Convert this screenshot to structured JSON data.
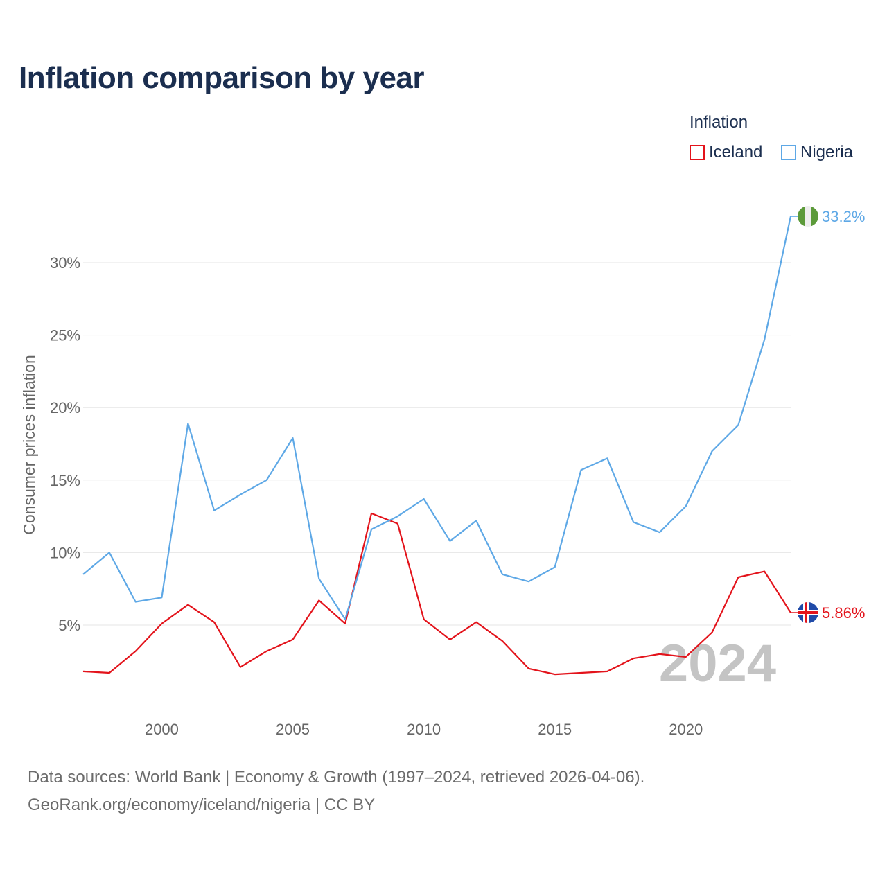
{
  "title": "Inflation comparison by year",
  "legend": {
    "title": "Inflation",
    "items": [
      {
        "name": "Iceland",
        "color": "#e3131b"
      },
      {
        "name": "Nigeria",
        "color": "#5ea8e6"
      }
    ]
  },
  "year_watermark": "2024",
  "source": {
    "line1": "Data sources: World Bank | Economy & Growth (1997–2024, retrieved 2026-04-06).",
    "line2": "GeoRank.org/economy/iceland/nigeria | CC BY"
  },
  "chart_data": {
    "type": "line",
    "title": "Inflation comparison by year",
    "xlabel": "",
    "ylabel": "Consumer prices inflation",
    "x": [
      1997,
      1998,
      1999,
      2000,
      2001,
      2002,
      2003,
      2004,
      2005,
      2006,
      2007,
      2008,
      2009,
      2010,
      2011,
      2012,
      2013,
      2014,
      2015,
      2016,
      2017,
      2018,
      2019,
      2020,
      2021,
      2022,
      2023,
      2024
    ],
    "xlim": [
      1997,
      2024
    ],
    "ylim": [
      0,
      33.2
    ],
    "x_ticks": [
      2000,
      2005,
      2010,
      2015,
      2020
    ],
    "x_tick_labels": [
      "2000",
      "2005",
      "2010",
      "2015",
      "2020"
    ],
    "y_ticks": [
      5,
      10,
      15,
      20,
      25,
      30
    ],
    "y_tick_labels": [
      "5%",
      "10%",
      "15%",
      "20%",
      "25%",
      "30%"
    ],
    "grid": true,
    "legend_position": "top-right",
    "series": [
      {
        "name": "Iceland",
        "color": "#e3131b",
        "values": [
          1.8,
          1.7,
          3.2,
          5.1,
          6.4,
          5.2,
          2.1,
          3.2,
          4.0,
          6.7,
          5.1,
          12.7,
          12.0,
          5.4,
          4.0,
          5.2,
          3.9,
          2.0,
          1.6,
          1.7,
          1.8,
          2.7,
          3.0,
          2.8,
          4.5,
          8.3,
          8.7,
          5.86
        ],
        "end_label": "5.86%",
        "end_marker": "iceland-flag-icon"
      },
      {
        "name": "Nigeria",
        "color": "#5ea8e6",
        "values": [
          8.5,
          10.0,
          6.6,
          6.9,
          18.9,
          12.9,
          14.0,
          15.0,
          17.9,
          8.2,
          5.4,
          11.6,
          12.5,
          13.7,
          10.8,
          12.2,
          8.5,
          8.0,
          9.0,
          15.7,
          16.5,
          12.1,
          11.4,
          13.2,
          17.0,
          18.8,
          24.7,
          33.2
        ],
        "end_label": "33.2%",
        "end_marker": "nigeria-flag-icon"
      }
    ]
  }
}
